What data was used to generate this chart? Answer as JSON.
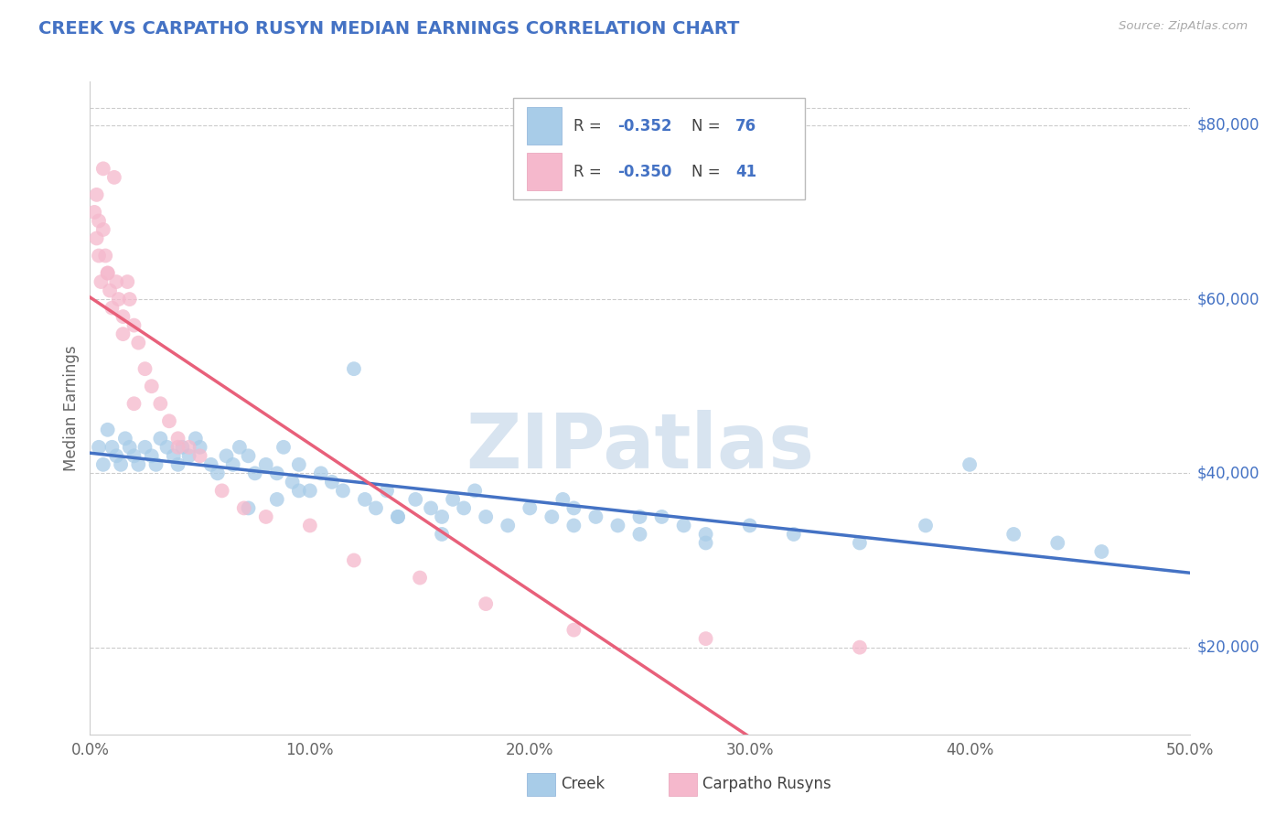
{
  "title": "CREEK VS CARPATHO RUSYN MEDIAN EARNINGS CORRELATION CHART",
  "source": "Source: ZipAtlas.com",
  "ylabel": "Median Earnings",
  "xlim": [
    0.0,
    0.5
  ],
  "ylim": [
    10000,
    85000
  ],
  "xticks": [
    0.0,
    0.1,
    0.2,
    0.3,
    0.4,
    0.5
  ],
  "xtick_labels": [
    "0.0%",
    "10.0%",
    "20.0%",
    "30.0%",
    "40.0%",
    "50.0%"
  ],
  "yticks": [
    20000,
    40000,
    60000,
    80000
  ],
  "ytick_labels": [
    "$20,000",
    "$40,000",
    "$60,000",
    "$80,000"
  ],
  "creek_R": -0.352,
  "creek_N": 76,
  "carpatho_R": -0.35,
  "carpatho_N": 41,
  "creek_color": "#a8cce8",
  "carpatho_color": "#f5b8cc",
  "creek_line_color": "#4472c4",
  "carpatho_line_color": "#e8607a",
  "watermark_color": "#d8e4f0",
  "watermark": "ZIPatlas",
  "legend_label_creek": "Creek",
  "legend_label_carpatho": "Carpatho Rusyns",
  "background_color": "#ffffff",
  "grid_color": "#cccccc",
  "title_color": "#4472c4",
  "axis_label_color": "#666666",
  "right_tick_color": "#4472c4",
  "creek_x": [
    0.004,
    0.006,
    0.008,
    0.01,
    0.012,
    0.014,
    0.016,
    0.018,
    0.02,
    0.022,
    0.025,
    0.028,
    0.03,
    0.032,
    0.035,
    0.038,
    0.04,
    0.042,
    0.045,
    0.048,
    0.05,
    0.055,
    0.058,
    0.062,
    0.065,
    0.068,
    0.072,
    0.075,
    0.08,
    0.085,
    0.088,
    0.092,
    0.095,
    0.1,
    0.105,
    0.11,
    0.115,
    0.12,
    0.125,
    0.13,
    0.135,
    0.14,
    0.148,
    0.155,
    0.16,
    0.165,
    0.17,
    0.175,
    0.18,
    0.19,
    0.2,
    0.21,
    0.215,
    0.22,
    0.23,
    0.24,
    0.25,
    0.26,
    0.27,
    0.28,
    0.3,
    0.32,
    0.35,
    0.38,
    0.4,
    0.42,
    0.44,
    0.46,
    0.072,
    0.16,
    0.28,
    0.095,
    0.14,
    0.22,
    0.085,
    0.25
  ],
  "creek_y": [
    43000,
    41000,
    45000,
    43000,
    42000,
    41000,
    44000,
    43000,
    42000,
    41000,
    43000,
    42000,
    41000,
    44000,
    43000,
    42000,
    41000,
    43000,
    42000,
    44000,
    43000,
    41000,
    40000,
    42000,
    41000,
    43000,
    42000,
    40000,
    41000,
    40000,
    43000,
    39000,
    41000,
    38000,
    40000,
    39000,
    38000,
    52000,
    37000,
    36000,
    38000,
    35000,
    37000,
    36000,
    35000,
    37000,
    36000,
    38000,
    35000,
    34000,
    36000,
    35000,
    37000,
    34000,
    35000,
    34000,
    33000,
    35000,
    34000,
    33000,
    34000,
    33000,
    32000,
    34000,
    41000,
    33000,
    32000,
    31000,
    36000,
    33000,
    32000,
    38000,
    35000,
    36000,
    37000,
    35000
  ],
  "carpatho_x": [
    0.002,
    0.003,
    0.004,
    0.005,
    0.006,
    0.007,
    0.008,
    0.009,
    0.01,
    0.011,
    0.012,
    0.013,
    0.015,
    0.017,
    0.018,
    0.02,
    0.022,
    0.025,
    0.028,
    0.032,
    0.036,
    0.04,
    0.045,
    0.05,
    0.06,
    0.07,
    0.08,
    0.1,
    0.12,
    0.15,
    0.18,
    0.22,
    0.28,
    0.35,
    0.003,
    0.004,
    0.006,
    0.008,
    0.015,
    0.02,
    0.04
  ],
  "carpatho_y": [
    70000,
    67000,
    65000,
    62000,
    68000,
    65000,
    63000,
    61000,
    59000,
    74000,
    62000,
    60000,
    58000,
    62000,
    60000,
    57000,
    55000,
    52000,
    50000,
    48000,
    46000,
    44000,
    43000,
    42000,
    38000,
    36000,
    35000,
    34000,
    30000,
    28000,
    25000,
    22000,
    21000,
    20000,
    72000,
    69000,
    75000,
    63000,
    56000,
    48000,
    43000
  ]
}
